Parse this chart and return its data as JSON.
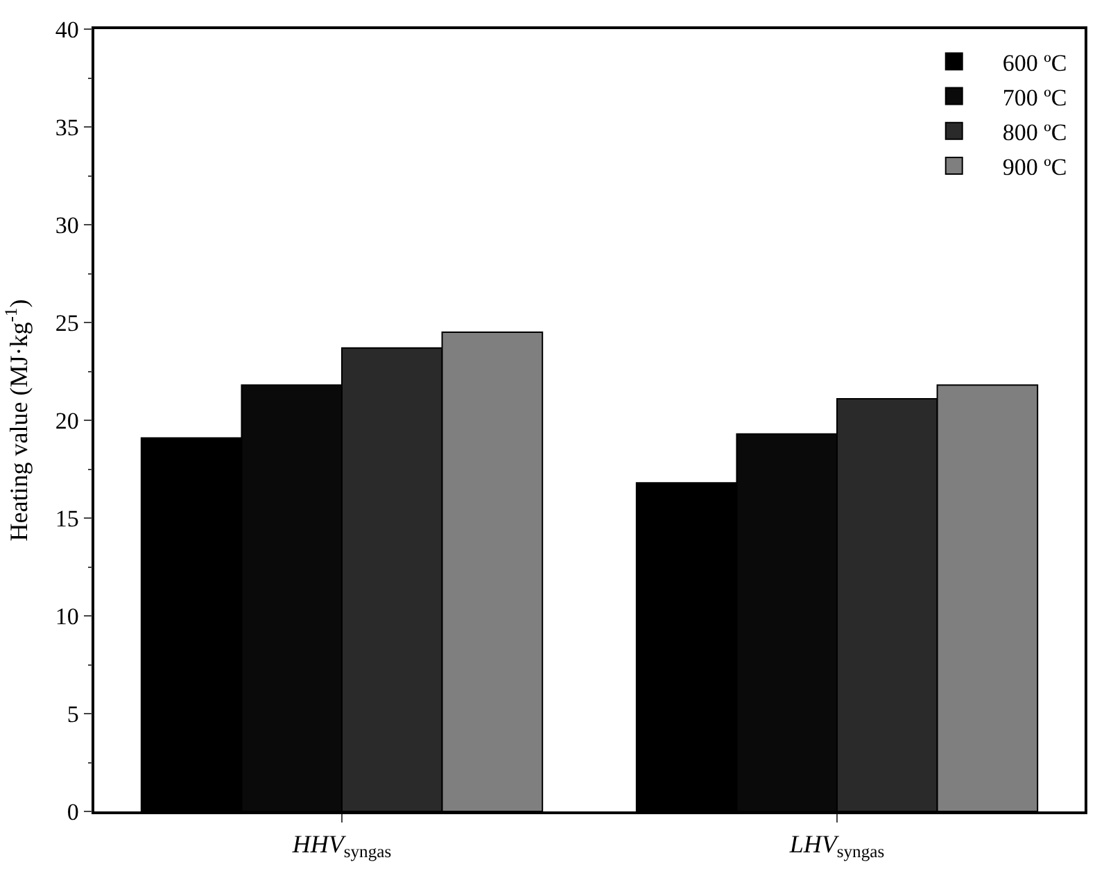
{
  "chart_data": {
    "type": "bar",
    "ylabel": "Heating value (MJ·kg$^{-1}$)",
    "categories": [
      "HHV$_{syngas}$",
      "LHV$_{syngas}$"
    ],
    "series": [
      {
        "name": "600 ºC",
        "color": "#000000",
        "values": [
          19.1,
          16.8
        ]
      },
      {
        "name": "700 ºC",
        "color": "#0a0a0a",
        "values": [
          21.8,
          19.3
        ]
      },
      {
        "name": "800 ºC",
        "color": "#2a2a2a",
        "values": [
          23.7,
          21.1
        ]
      },
      {
        "name": "900 ºC",
        "color": "#7f7f7f",
        "values": [
          24.5,
          21.8
        ]
      }
    ],
    "ylim": [
      0,
      40
    ],
    "yticks": [
      0,
      5,
      10,
      15,
      20,
      25,
      30,
      35,
      40
    ],
    "grid": false,
    "legend": "top right"
  }
}
